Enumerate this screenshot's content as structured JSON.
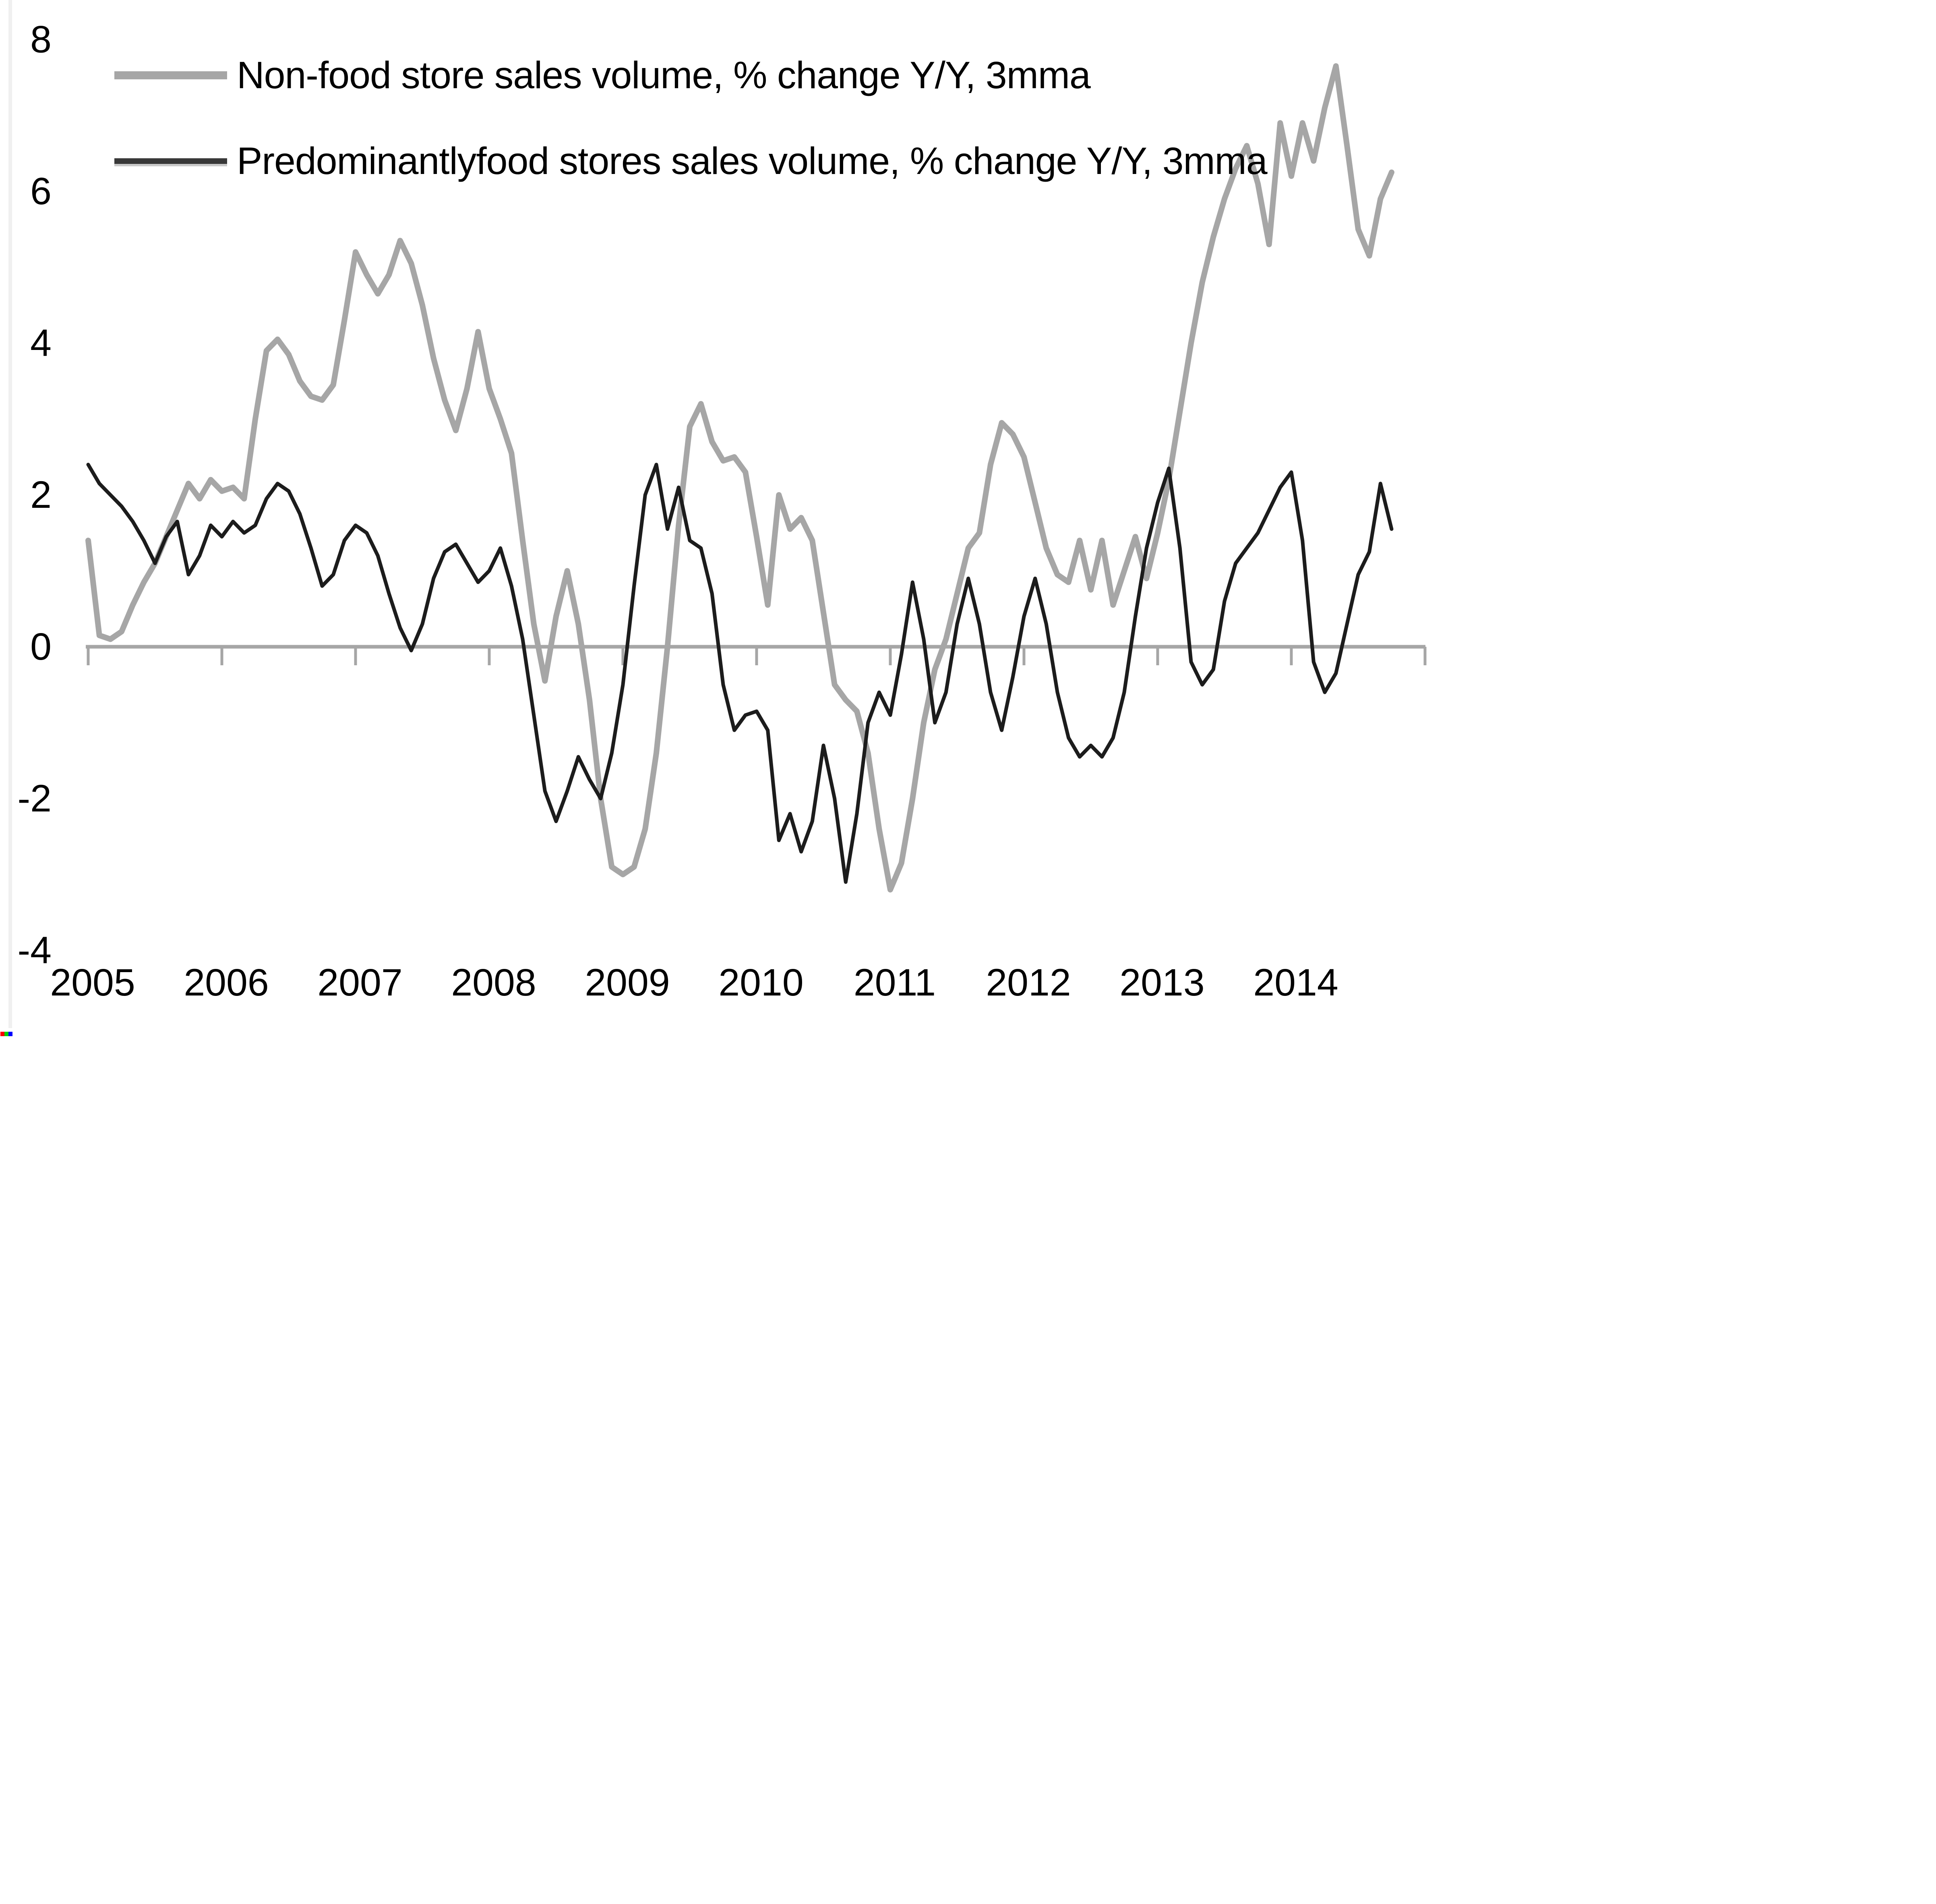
{
  "chart_data": {
    "type": "line",
    "title": "",
    "xlabel": "",
    "ylabel": "",
    "ylim": [
      -4,
      8
    ],
    "y_ticks": [
      8,
      6,
      4,
      2,
      0,
      -2,
      -4
    ],
    "x_tick_labels": [
      "2005",
      "2006",
      "2007",
      "2008",
      "2009",
      "2010",
      "2011",
      "2012",
      "2013",
      "2014"
    ],
    "points_per_year": 12,
    "first_point": "Jan 2005",
    "grid": false,
    "legend_position": "top-left-inside",
    "axis_color": "#a6a6a6",
    "series": [
      {
        "name": "Non-food store sales volume, % change Y/Y, 3mma",
        "color": "#a6a6a6",
        "values": [
          1.4,
          0.15,
          0.1,
          0.2,
          0.55,
          0.85,
          1.1,
          1.45,
          1.8,
          2.15,
          1.95,
          2.2,
          2.05,
          2.1,
          1.95,
          3.0,
          3.9,
          4.05,
          3.85,
          3.5,
          3.3,
          3.25,
          3.45,
          4.3,
          5.2,
          4.9,
          4.65,
          4.9,
          5.35,
          5.05,
          4.5,
          3.8,
          3.25,
          2.85,
          3.4,
          4.15,
          3.4,
          3.0,
          2.55,
          1.4,
          0.3,
          -0.45,
          0.4,
          1.0,
          0.3,
          -0.7,
          -2.0,
          -2.9,
          -3.0,
          -2.9,
          -2.4,
          -1.4,
          0.0,
          1.6,
          2.9,
          3.2,
          2.7,
          2.45,
          2.5,
          2.3,
          1.45,
          0.55,
          2.0,
          1.55,
          1.7,
          1.4,
          0.45,
          -0.5,
          -0.7,
          -0.85,
          -1.4,
          -2.4,
          -3.2,
          -2.85,
          -2.0,
          -1.0,
          -0.3,
          0.1,
          0.7,
          1.3,
          1.5,
          2.4,
          2.95,
          2.8,
          2.5,
          1.9,
          1.3,
          0.95,
          0.85,
          1.4,
          0.75,
          1.4,
          0.55,
          1.0,
          1.45,
          0.9,
          1.5,
          2.2,
          3.1,
          4.0,
          4.8,
          5.4,
          5.9,
          6.3,
          6.6,
          6.1,
          5.3,
          6.9,
          6.2,
          6.9,
          6.4,
          7.1,
          7.65,
          6.6,
          5.5,
          5.15,
          5.9,
          6.25
        ]
      },
      {
        "name": "Predominantlyfood stores sales volume, % change Y/Y, 3mma",
        "color": "#1c1c1c",
        "values": [
          2.4,
          2.15,
          2.0,
          1.85,
          1.65,
          1.4,
          1.1,
          1.45,
          1.65,
          0.95,
          1.2,
          1.6,
          1.45,
          1.65,
          1.5,
          1.6,
          1.95,
          2.15,
          2.05,
          1.75,
          1.3,
          0.8,
          0.95,
          1.4,
          1.6,
          1.5,
          1.2,
          0.7,
          0.25,
          -0.05,
          0.3,
          0.9,
          1.25,
          1.35,
          1.1,
          0.85,
          1.0,
          1.3,
          0.8,
          0.1,
          -0.9,
          -1.9,
          -2.3,
          -1.9,
          -1.45,
          -1.75,
          -2.0,
          -1.4,
          -0.5,
          0.8,
          2.0,
          2.4,
          1.55,
          2.1,
          1.4,
          1.3,
          0.7,
          -0.5,
          -1.1,
          -0.9,
          -0.85,
          -1.1,
          -2.55,
          -2.2,
          -2.7,
          -2.3,
          -1.3,
          -2.0,
          -3.1,
          -2.2,
          -1.0,
          -0.6,
          -0.9,
          -0.1,
          0.85,
          0.1,
          -1.0,
          -0.6,
          0.3,
          0.9,
          0.3,
          -0.6,
          -1.1,
          -0.4,
          0.4,
          0.9,
          0.3,
          -0.6,
          -1.2,
          -1.45,
          -1.3,
          -1.45,
          -1.2,
          -0.6,
          0.4,
          1.3,
          1.9,
          2.35,
          1.3,
          -0.2,
          -0.5,
          -0.3,
          0.6,
          1.1,
          1.3,
          1.5,
          1.8,
          2.1,
          2.3,
          1.4,
          -0.2,
          -0.6,
          -0.35,
          0.3,
          0.95,
          1.25,
          2.15,
          1.55
        ]
      }
    ]
  },
  "legend": {
    "items": [
      {
        "label": "Non-food store sales volume, % change Y/Y, 3mma",
        "color": "#a6a6a6"
      },
      {
        "label": "Predominantlyfood stores sales volume, % change Y/Y, 3mma",
        "color": "#383838"
      }
    ]
  },
  "decorations": {
    "rgb_marker_colors": [
      "#ff0000",
      "#00d400",
      "#0000ff"
    ]
  }
}
